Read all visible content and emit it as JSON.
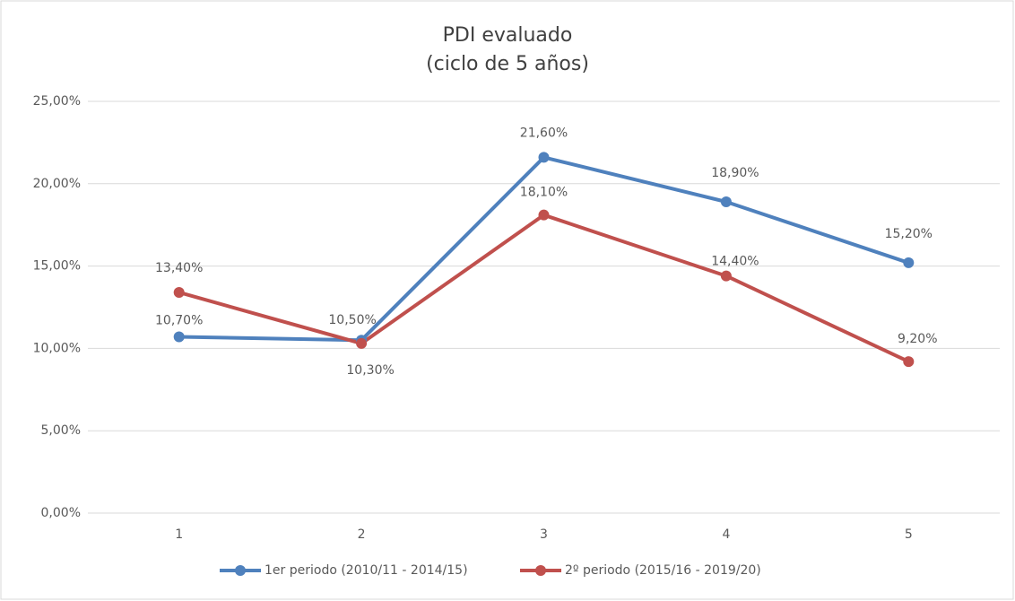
{
  "chart_data": {
    "type": "line",
    "title": "PDI evaluado",
    "subtitle": "(ciclo de 5 años)",
    "categories": [
      "1",
      "2",
      "3",
      "4",
      "5"
    ],
    "series": [
      {
        "name": "1er periodo (2010/11 - 2014/15)",
        "color": "#4f81bd",
        "values": [
          10.7,
          10.5,
          21.6,
          18.9,
          15.2
        ],
        "value_labels": [
          "10,70%",
          "10,50%",
          "21,60%",
          "18,90%",
          "15,20%"
        ]
      },
      {
        "name": "2º periodo (2015/16 - 2019/20)",
        "color": "#c0504d",
        "values": [
          13.4,
          10.3,
          18.1,
          14.4,
          9.2
        ],
        "value_labels": [
          "13,40%",
          "10,30%",
          "18,10%",
          "14,40%",
          "9,20%"
        ]
      }
    ],
    "ylim": [
      0,
      25
    ],
    "yticks": [
      {
        "value": 0,
        "label": "0,00%"
      },
      {
        "value": 5,
        "label": "5,00%"
      },
      {
        "value": 10,
        "label": "10,00%"
      },
      {
        "value": 15,
        "label": "15,00%"
      },
      {
        "value": 20,
        "label": "20,00%"
      },
      {
        "value": 25,
        "label": "25,00%"
      }
    ],
    "grid": true,
    "legend": "bottom"
  }
}
